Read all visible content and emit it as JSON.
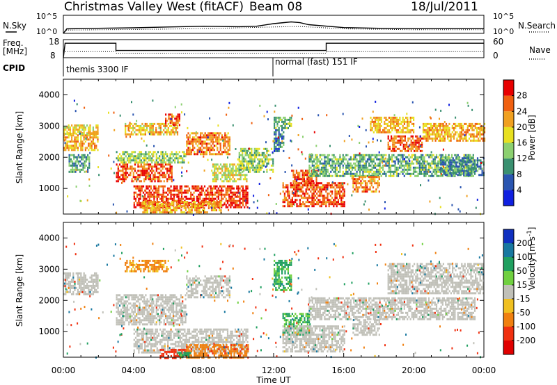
{
  "header": {
    "station": "Christmas Valley West (fitACF)",
    "beam": "Beam 08",
    "date": "18/Jul/2011"
  },
  "summary_panel": {
    "nsky_label": "N.Sky",
    "nsky_ticks": [
      "10^5",
      "10^0"
    ],
    "nsearch_label": "N.Search",
    "freq_label_1": "Freq.",
    "freq_label_2": "[MHz]",
    "freq_ticks": [
      "18",
      "8"
    ],
    "nave_label": "Nave",
    "nave_ticks": [
      "60",
      "0"
    ],
    "cpid_label": "CPID",
    "cpid_modes": [
      "themis 3300 IF",
      "normal (fast) 151 IF"
    ]
  },
  "axes": {
    "xlabel": "Time UT",
    "xticks": [
      "00:00",
      "04:00",
      "08:00",
      "12:00",
      "16:00",
      "20:00",
      "00:00"
    ],
    "ylabel": "Slant Range [km]",
    "yticks": [
      "1000",
      "2000",
      "3000",
      "4000"
    ]
  },
  "colors": {
    "power": [
      "#1020e0",
      "#2a55b0",
      "#3a9070",
      "#8cd070",
      "#e8e020",
      "#f0a020",
      "#f06010",
      "#e80000"
    ],
    "velocity": [
      "#1030c0",
      "#1878a0",
      "#20a060",
      "#70d040",
      "#c0c0b8",
      "#f0c020",
      "#f08010",
      "#f03010",
      "#e00000"
    ],
    "ground_scatter": "#c0c0b8"
  },
  "power_scale": {
    "label": "Power [dB]",
    "ticks": [
      "4",
      "8",
      "12",
      "16",
      "20",
      "24",
      "28"
    ]
  },
  "velocity_scale": {
    "label": "Velocity [m s",
    "label_sup": "-1",
    "label_end": "]",
    "ticks": [
      "200",
      "100",
      "50",
      "15",
      "-15",
      "-50",
      "-100",
      "-200"
    ]
  },
  "chart_data": [
    {
      "type": "line",
      "panel": "noise_and_frequency",
      "x_range_hours": [
        0,
        24
      ],
      "series": [
        {
          "name": "N.Sky",
          "x": [
            0,
            0.2,
            2,
            4,
            6,
            8,
            10,
            11,
            12,
            13,
            13.5,
            14,
            16,
            18,
            20,
            22,
            24
          ],
          "y": [
            1,
            18,
            25,
            35,
            60,
            90,
            70,
            90,
            500,
            1500,
            900,
            250,
            40,
            25,
            20,
            20,
            20
          ]
        },
        {
          "name": "N.Search",
          "x": [
            0,
            0.2,
            2,
            4,
            8,
            12,
            13.5,
            16,
            20,
            24
          ],
          "y": [
            1,
            8,
            10,
            12,
            20,
            60,
            80,
            18,
            10,
            10
          ]
        },
        {
          "name": "Freq. [MHz]",
          "x": [
            0,
            0.1,
            3.0,
            3.0,
            15.0,
            15.0,
            24
          ],
          "y": [
            8,
            16,
            16,
            12,
            12,
            16,
            16
          ]
        },
        {
          "name": "Nave",
          "x": [
            0,
            3,
            3,
            15,
            15,
            24
          ],
          "y": [
            20,
            20,
            15,
            15,
            20,
            20
          ]
        }
      ],
      "cpid_segments": [
        {
          "label": "themis 3300 IF",
          "start_hour": 0,
          "end_hour": 12
        },
        {
          "label": "normal (fast) 151 IF",
          "start_hour": 12,
          "end_hour": 24
        }
      ]
    },
    {
      "type": "heatmap",
      "panel": "power",
      "units": "dB",
      "x_range_hours": [
        0,
        24
      ],
      "y_range_km": [
        180,
        4500
      ],
      "scatter_regions": [
        {
          "t": [
            0.0,
            2.0
          ],
          "r": [
            2200,
            2800
          ],
          "v": 22
        },
        {
          "t": [
            0.0,
            2.0
          ],
          "r": [
            2750,
            3050
          ],
          "v": 18
        },
        {
          "t": [
            0.3,
            1.5
          ],
          "r": [
            1500,
            2100
          ],
          "v": 11
        },
        {
          "t": [
            3.0,
            6.2
          ],
          "r": [
            1200,
            1800
          ],
          "v": 27
        },
        {
          "t": [
            3.0,
            7.0
          ],
          "r": [
            1800,
            2200
          ],
          "v": 15
        },
        {
          "t": [
            3.5,
            6.5
          ],
          "r": [
            2700,
            3100
          ],
          "v": 20
        },
        {
          "t": [
            5.8,
            6.6
          ],
          "r": [
            3000,
            3400
          ],
          "v": 26
        },
        {
          "t": [
            4.0,
            10.5
          ],
          "r": [
            400,
            1100
          ],
          "v": 28
        },
        {
          "t": [
            4.5,
            9.0
          ],
          "r": [
            250,
            600
          ],
          "v": 22
        },
        {
          "t": [
            7.0,
            9.5
          ],
          "r": [
            2100,
            2800
          ],
          "v": 24
        },
        {
          "t": [
            8.5,
            10.5
          ],
          "r": [
            1200,
            1800
          ],
          "v": 17
        },
        {
          "t": [
            10.0,
            12.0
          ],
          "r": [
            1500,
            2300
          ],
          "v": 14
        },
        {
          "t": [
            12.0,
            13.0
          ],
          "r": [
            2900,
            3300
          ],
          "v": 13
        },
        {
          "t": [
            12.0,
            12.6
          ],
          "r": [
            2200,
            2900
          ],
          "v": 8
        },
        {
          "t": [
            13.0,
            14.5
          ],
          "r": [
            1000,
            1600
          ],
          "v": 26
        },
        {
          "t": [
            12.5,
            16.0
          ],
          "r": [
            400,
            1200
          ],
          "v": 27
        },
        {
          "t": [
            14.0,
            23.5
          ],
          "r": [
            1400,
            2100
          ],
          "v": 12
        },
        {
          "t": [
            16.5,
            18.0
          ],
          "r": [
            900,
            1400
          ],
          "v": 24
        },
        {
          "t": [
            17.5,
            20.0
          ],
          "r": [
            2800,
            3300
          ],
          "v": 21
        },
        {
          "t": [
            18.5,
            20.5
          ],
          "r": [
            2200,
            2700
          ],
          "v": 26
        },
        {
          "t": [
            20.5,
            24.0
          ],
          "r": [
            2500,
            3100
          ],
          "v": 22
        },
        {
          "t": [
            21.5,
            24.0
          ],
          "r": [
            1400,
            2000
          ],
          "v": 9
        }
      ]
    },
    {
      "type": "heatmap",
      "panel": "velocity",
      "units": "m/s",
      "x_range_hours": [
        0,
        24
      ],
      "y_range_km": [
        180,
        4500
      ],
      "scatter_regions": [
        {
          "t": [
            0.0,
            2.0
          ],
          "r": [
            2200,
            2900
          ],
          "v": 0,
          "ground": true
        },
        {
          "t": [
            3.0,
            7.0
          ],
          "r": [
            1200,
            2200
          ],
          "v": 0,
          "ground": true
        },
        {
          "t": [
            4.0,
            10.5
          ],
          "r": [
            300,
            1100
          ],
          "v": 0,
          "ground": true
        },
        {
          "t": [
            5.5,
            7.0
          ],
          "r": [
            150,
            450
          ],
          "v": -100
        },
        {
          "t": [
            7.0,
            10.5
          ],
          "r": [
            150,
            600
          ],
          "v": -60
        },
        {
          "t": [
            6.5,
            7.2
          ],
          "r": [
            150,
            350
          ],
          "v": 50
        },
        {
          "t": [
            3.5,
            6.0
          ],
          "r": [
            2900,
            3300
          ],
          "v": -40
        },
        {
          "t": [
            7.0,
            9.5
          ],
          "r": [
            2100,
            2800
          ],
          "v": 0,
          "ground": true
        },
        {
          "t": [
            12.0,
            13.0
          ],
          "r": [
            2300,
            3300
          ],
          "v": 40
        },
        {
          "t": [
            12.5,
            14.0
          ],
          "r": [
            900,
            1600
          ],
          "v": 35
        },
        {
          "t": [
            12.5,
            16.0
          ],
          "r": [
            350,
            1200
          ],
          "v": 0,
          "ground": true
        },
        {
          "t": [
            14.0,
            23.5
          ],
          "r": [
            1400,
            2100
          ],
          "v": 0,
          "ground": true
        },
        {
          "t": [
            16.5,
            18.0
          ],
          "r": [
            900,
            1400
          ],
          "v": 0,
          "ground": true
        },
        {
          "t": [
            18.5,
            24.0
          ],
          "r": [
            2200,
            3200
          ],
          "v": 0,
          "ground": true
        }
      ]
    }
  ]
}
